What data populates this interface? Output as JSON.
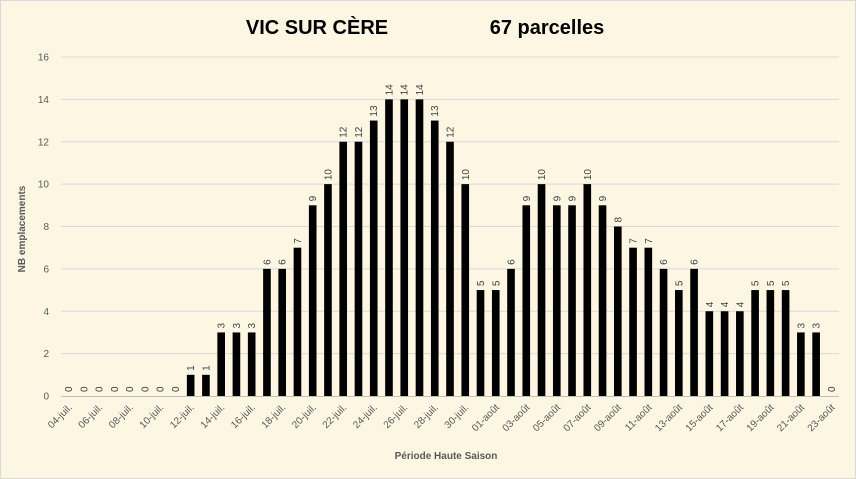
{
  "chart_data": {
    "type": "bar",
    "title_left": "VIC SUR CÈRE",
    "title_right": "67 parcelles",
    "xlabel": "Période Haute Saison",
    "ylabel": "NB emplacements",
    "ylim": [
      0,
      16
    ],
    "yticks": [
      0,
      2,
      4,
      6,
      8,
      10,
      12,
      14,
      16
    ],
    "grid": true,
    "bar_color": "#000000",
    "grid_color": "#d9d9d9",
    "categories": [
      "04-juil.",
      "05-juil.",
      "06-juil.",
      "07-juil.",
      "08-juil.",
      "09-juil.",
      "10-juil.",
      "11-juil.",
      "12-juil.",
      "13-juil.",
      "14-juil.",
      "15-juil.",
      "16-juil.",
      "17-juil.",
      "18-juil.",
      "19-juil.",
      "20-juil.",
      "21-juil.",
      "22-juil.",
      "23-juil.",
      "24-juil.",
      "25-juil.",
      "26-juil.",
      "27-juil.",
      "28-juil.",
      "29-juil.",
      "30-juil.",
      "31-juil.",
      "01-août",
      "02-août",
      "03-août",
      "04-août",
      "05-août",
      "06-août",
      "07-août",
      "08-août",
      "09-août",
      "10-août",
      "11-août",
      "12-août",
      "13-août",
      "14-août",
      "15-août",
      "16-août",
      "17-août",
      "18-août",
      "19-août",
      "20-août",
      "21-août",
      "22-août",
      "23-août"
    ],
    "tick_labels": [
      "04-juil.",
      "06-juil.",
      "08-juil.",
      "10-juil.",
      "12-juil.",
      "14-juil.",
      "16-juil.",
      "18-juil.",
      "20-juil.",
      "22-juil.",
      "24-juil.",
      "26-juil.",
      "28-juil.",
      "30-juil.",
      "01-août",
      "03-août",
      "05-août",
      "07-août",
      "09-août",
      "11-août",
      "13-août",
      "15-août",
      "17-août",
      "19-août",
      "21-août",
      "23-août"
    ],
    "values": [
      0,
      0,
      0,
      0,
      0,
      0,
      0,
      0,
      1,
      1,
      3,
      3,
      3,
      6,
      6,
      7,
      9,
      10,
      12,
      12,
      13,
      14,
      14,
      14,
      13,
      12,
      10,
      5,
      5,
      6,
      9,
      10,
      9,
      9,
      10,
      9,
      8,
      7,
      7,
      6,
      5,
      6,
      4,
      4,
      4,
      5,
      5,
      5,
      3,
      3,
      0
    ]
  }
}
